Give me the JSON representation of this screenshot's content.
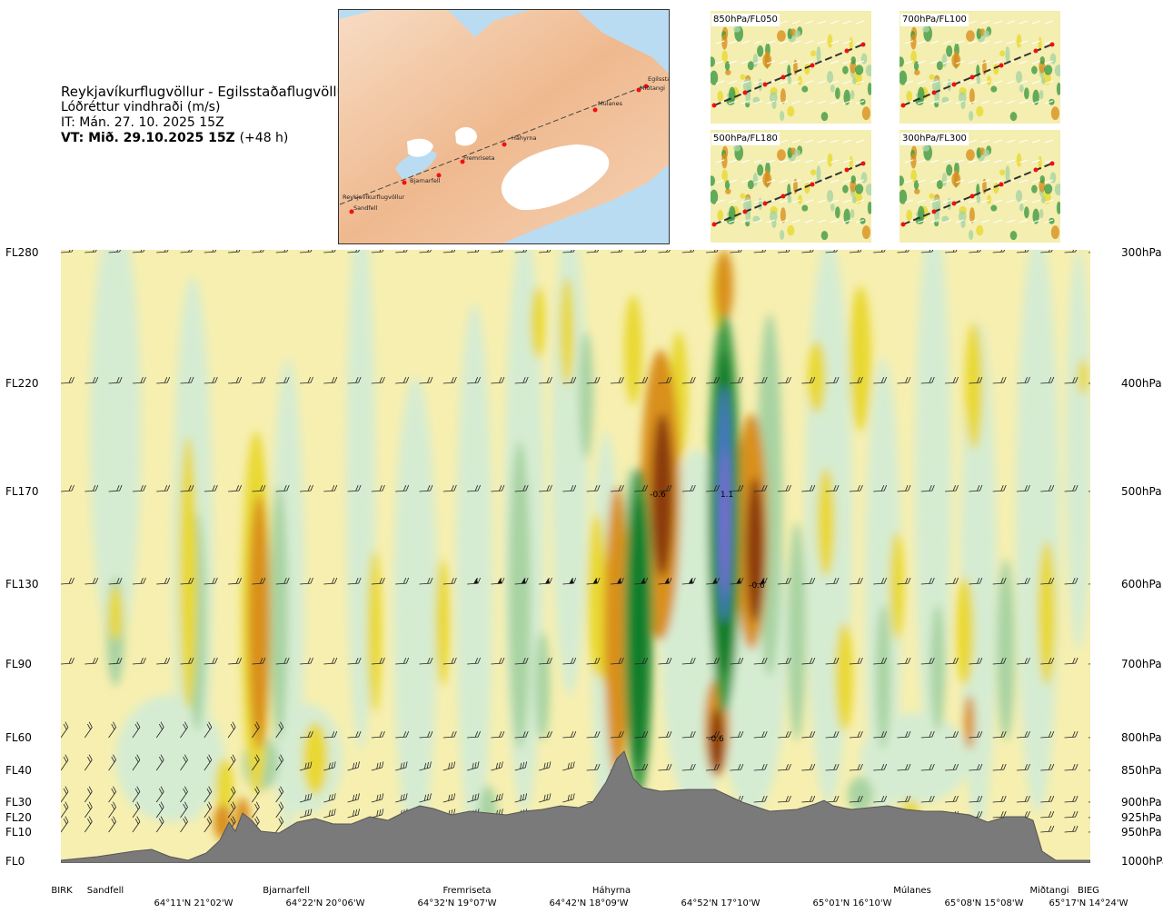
{
  "header": {
    "route": "Reykjavíkurflugvöllur - Egilsstaðaflugvöllur",
    "variable": "Lóðréttur vindhraði (m/s)",
    "issue_time": "IT: Mán. 27. 10. 2025 15Z",
    "valid_time": "VT: Mið. 29.10.2025 15Z",
    "lead_time": "(+48 h)"
  },
  "map": {
    "waypoints": [
      "Reykjavíkurflugvöllur",
      "Sandfell",
      "Bjarnarfell",
      "Fremriseta",
      "Háhyrna",
      "Múlanes",
      "Miðtangi",
      "Egilsstaðir"
    ]
  },
  "mini_maps": [
    "850hPa/FL050",
    "700hPa/FL100",
    "500hPa/FL180",
    "300hPa/FL300"
  ],
  "levels_left": [
    "FL280",
    "FL220",
    "FL170",
    "FL130",
    "FL90",
    "FL60",
    "FL40",
    "FL30",
    "FL20",
    "FL10",
    "FL0"
  ],
  "levels_right": [
    "300hPa",
    "400hPa",
    "500hPa",
    "600hPa",
    "700hPa",
    "800hPa",
    "850hPa",
    "900hPa",
    "925hPa",
    "950hPa",
    "1000hPa"
  ],
  "cross_section": {
    "contour_labels": [
      "-0.6",
      "1.1",
      "-0.6",
      "-0.6"
    ]
  },
  "locations": [
    "BIRK",
    "Sandfell",
    "Bjarnarfell",
    "Fremriseta",
    "Háhyrna",
    "Múlanes",
    "Miðtangi",
    "BIEG"
  ],
  "coordinates": [
    "64°11'N 21°02'W",
    "64°22'N 20°06'W",
    "64°32'N 19°07'W",
    "64°42'N 18°09'W",
    "64°52'N 17°10'W",
    "65°01'N 16°10'W",
    "65°08'N 15°08'W",
    "65°17'N 14°24'W"
  ],
  "colors": {
    "strong_down": "#8b3a0f",
    "mod_down": "#d9901e",
    "weak_down": "#e9d830",
    "faint_down": "#f6efb0",
    "faint_up": "#d6ecd2",
    "weak_up": "#a8d3a2",
    "mod_up": "#3e9a45",
    "strong_up": "#0f7d2a",
    "very_strong_up": "#4878c8",
    "extreme_up": "#7a6ad8",
    "terrain": "#7a7a7a"
  }
}
